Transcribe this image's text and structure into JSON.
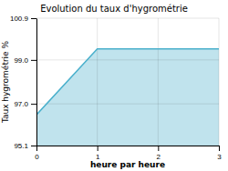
{
  "chart_data": {
    "type": "area",
    "title": "Evolution du taux d'hygrométrie",
    "xlabel": "heure par heure",
    "ylabel": "Taux hygrométrie %",
    "x": [
      0,
      1,
      2,
      3
    ],
    "values": [
      96.5,
      99.5,
      99.5,
      99.5
    ],
    "color": "#4ab0cc",
    "xlim": [
      0,
      3
    ],
    "ylim": [
      95.1,
      100.9
    ],
    "xticks": [
      0,
      1,
      2,
      3
    ],
    "yticks": [
      95.1,
      {
        "value": 97.0,
        "label": "97.0"
      },
      {
        "value": 99.0,
        "label": "99.0"
      },
      100.9
    ],
    "grid": true
  }
}
